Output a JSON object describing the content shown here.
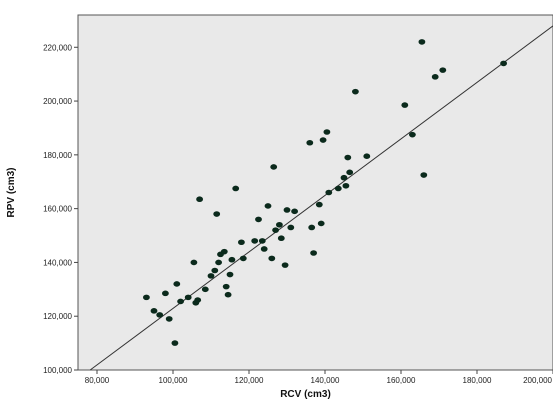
{
  "chart_data": {
    "type": "scatter",
    "title": "",
    "xlabel": "RCV (cm3)",
    "ylabel": "RPV (cm3)",
    "xlim": [
      75000,
      200000
    ],
    "ylim": [
      100000,
      232000
    ],
    "x_ticks": [
      80000,
      100000,
      120000,
      140000,
      160000,
      180000,
      200000
    ],
    "x_tick_labels": [
      "80,000",
      "100,000",
      "120,000",
      "140,000",
      "160,000",
      "180,000",
      "200,000"
    ],
    "y_ticks": [
      100000,
      120000,
      140000,
      160000,
      180000,
      200000,
      220000
    ],
    "y_tick_labels": [
      "100,000",
      "120,000",
      "140,000",
      "160,000",
      "180,000",
      "200,000",
      "220,000"
    ],
    "grid": false,
    "background_color": "#e9e9e9",
    "point_color": "#0b2a1c",
    "line_color": "#333333",
    "fit_line": {
      "x": [
        78200,
        201000
      ],
      "y": [
        100000,
        229000
      ]
    },
    "points": [
      {
        "x": 93000,
        "y": 127000
      },
      {
        "x": 95000,
        "y": 122000
      },
      {
        "x": 96500,
        "y": 120500
      },
      {
        "x": 98000,
        "y": 128500
      },
      {
        "x": 99000,
        "y": 119000
      },
      {
        "x": 100500,
        "y": 110000
      },
      {
        "x": 101000,
        "y": 132000
      },
      {
        "x": 102000,
        "y": 125500
      },
      {
        "x": 104000,
        "y": 127000
      },
      {
        "x": 105500,
        "y": 140000
      },
      {
        "x": 106000,
        "y": 125000
      },
      {
        "x": 106500,
        "y": 126000
      },
      {
        "x": 107000,
        "y": 163500
      },
      {
        "x": 108500,
        "y": 130000
      },
      {
        "x": 110000,
        "y": 135000
      },
      {
        "x": 111000,
        "y": 137000
      },
      {
        "x": 111500,
        "y": 158000
      },
      {
        "x": 112000,
        "y": 140000
      },
      {
        "x": 112500,
        "y": 143000
      },
      {
        "x": 113500,
        "y": 144000
      },
      {
        "x": 114000,
        "y": 131000
      },
      {
        "x": 114500,
        "y": 128000
      },
      {
        "x": 115000,
        "y": 135500
      },
      {
        "x": 115500,
        "y": 141000
      },
      {
        "x": 116500,
        "y": 167500
      },
      {
        "x": 118000,
        "y": 147500
      },
      {
        "x": 118500,
        "y": 141500
      },
      {
        "x": 121500,
        "y": 148000
      },
      {
        "x": 122500,
        "y": 156000
      },
      {
        "x": 123500,
        "y": 148000
      },
      {
        "x": 124000,
        "y": 145000
      },
      {
        "x": 125000,
        "y": 161000
      },
      {
        "x": 126000,
        "y": 141500
      },
      {
        "x": 126500,
        "y": 175500
      },
      {
        "x": 127000,
        "y": 152000
      },
      {
        "x": 128000,
        "y": 154000
      },
      {
        "x": 128500,
        "y": 149000
      },
      {
        "x": 129500,
        "y": 139000
      },
      {
        "x": 130000,
        "y": 159500
      },
      {
        "x": 131000,
        "y": 153000
      },
      {
        "x": 132000,
        "y": 159000
      },
      {
        "x": 136000,
        "y": 184500
      },
      {
        "x": 136500,
        "y": 153000
      },
      {
        "x": 137000,
        "y": 143500
      },
      {
        "x": 138500,
        "y": 161500
      },
      {
        "x": 139000,
        "y": 154500
      },
      {
        "x": 139500,
        "y": 185500
      },
      {
        "x": 140500,
        "y": 188500
      },
      {
        "x": 141000,
        "y": 166000
      },
      {
        "x": 143500,
        "y": 167500
      },
      {
        "x": 145000,
        "y": 171500
      },
      {
        "x": 145500,
        "y": 168500
      },
      {
        "x": 146000,
        "y": 179000
      },
      {
        "x": 146500,
        "y": 173500
      },
      {
        "x": 148000,
        "y": 203500
      },
      {
        "x": 151000,
        "y": 179500
      },
      {
        "x": 161000,
        "y": 198500
      },
      {
        "x": 163000,
        "y": 187500
      },
      {
        "x": 165500,
        "y": 222000
      },
      {
        "x": 166000,
        "y": 172500
      },
      {
        "x": 169000,
        "y": 209000
      },
      {
        "x": 171000,
        "y": 211500
      },
      {
        "x": 187000,
        "y": 214000
      }
    ]
  }
}
